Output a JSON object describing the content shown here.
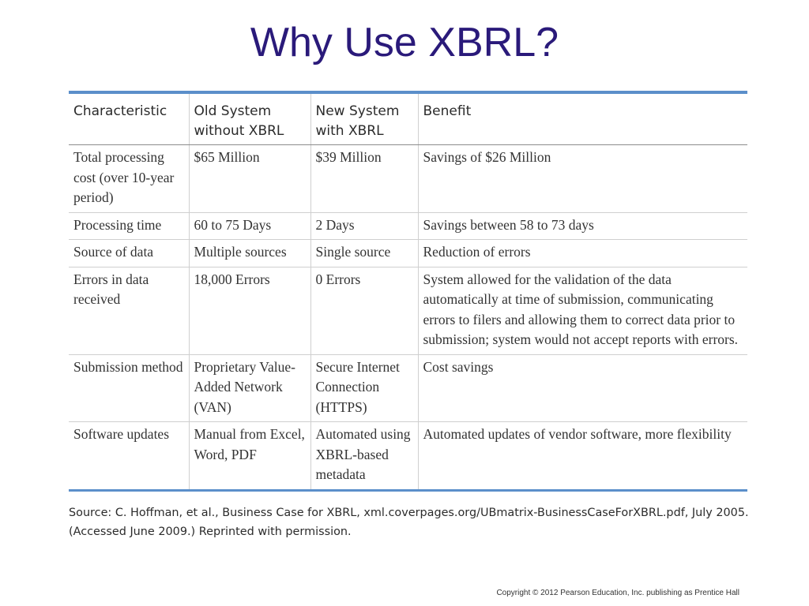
{
  "slide": {
    "title": "Why Use XBRL?"
  },
  "table": {
    "headers": [
      "Characteristic",
      "Old System without XBRL",
      "New System with XBRL",
      "Benefit"
    ],
    "rows": [
      [
        "Total processing cost (over 10-year period)",
        "$65 Million",
        "$39 Million",
        "Savings of $26 Million"
      ],
      [
        "Processing time",
        "60 to 75 Days",
        "2 Days",
        "Savings between 58 to 73 days"
      ],
      [
        "Source of data",
        "Multiple sources",
        "Single source",
        "Reduction of errors"
      ],
      [
        "Errors in data received",
        "18,000 Errors",
        "0 Errors",
        "System allowed for the validation of the data automatically at time of submission, communicating errors to filers and allowing them to correct data prior to submission; system would not accept reports with errors."
      ],
      [
        "Submission method",
        "Proprietary Value-Added Network (VAN)",
        "Secure Internet Connection (HTTPS)",
        "Cost savings"
      ],
      [
        "Software updates",
        "Manual from Excel, Word, PDF",
        "Automated using XBRL-based metadata",
        "Automated updates of vendor software, more flexibility"
      ]
    ]
  },
  "source_note": "Source: C. Hoffman, et al., Business Case for XBRL, xml.coverpages.org/UBmatrix-BusinessCaseForXBRL.pdf, July 2005. (Accessed June 2009.) Reprinted with permission.",
  "copyright": "Copyright © 2012 Pearson Education, Inc. publishing as Prentice Hall",
  "colors": {
    "title": "#2a1a7a",
    "table_rule": "#5b8fca"
  }
}
